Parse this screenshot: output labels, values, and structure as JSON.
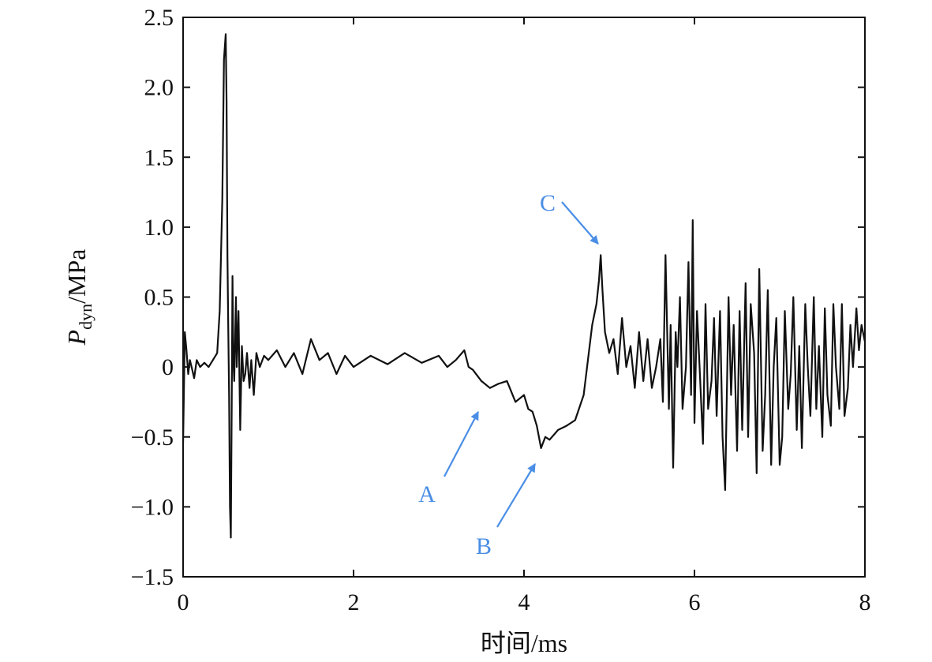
{
  "chart_data": {
    "type": "line",
    "xlabel": "时间/ms",
    "ylabel": {
      "main": "P",
      "subscript": "dyn",
      "unit": "/MPa"
    },
    "xlim": [
      0,
      8
    ],
    "ylim": [
      -1.5,
      2.5
    ],
    "xticks": [
      0,
      2,
      4,
      6,
      8
    ],
    "xtick_labels": [
      "0",
      "2",
      "4",
      "6",
      "8"
    ],
    "yticks": [
      2.5,
      2.0,
      1.5,
      1.0,
      0.5,
      0,
      -0.5,
      -1.0,
      -1.5
    ],
    "ytick_labels": [
      "2.5",
      "2.0",
      "1.5",
      "1.0",
      "0.5",
      "0",
      "−0.5",
      "−1.0",
      "−1.5"
    ],
    "grid": false,
    "legend": "none",
    "line_color": "#111111",
    "annotation_color": "#4a8ee6",
    "series": [
      {
        "x": [
          0.0,
          0.02,
          0.04,
          0.06,
          0.08,
          0.1,
          0.13,
          0.16,
          0.2,
          0.25,
          0.3,
          0.35,
          0.4,
          0.43,
          0.46,
          0.48,
          0.5,
          0.51,
          0.52,
          0.53,
          0.54,
          0.55,
          0.56,
          0.57,
          0.58,
          0.59,
          0.6,
          0.62,
          0.63,
          0.65,
          0.67,
          0.69,
          0.71,
          0.73,
          0.75,
          0.78,
          0.8,
          0.83,
          0.86,
          0.9,
          0.95,
          1.0,
          1.1,
          1.2,
          1.3,
          1.4,
          1.5,
          1.6,
          1.7,
          1.8,
          1.9,
          2.0,
          2.2,
          2.4,
          2.6,
          2.8,
          3.0,
          3.1,
          3.2,
          3.3,
          3.35,
          3.4,
          3.5,
          3.6,
          3.7,
          3.8,
          3.9,
          4.0,
          4.05,
          4.1,
          4.15,
          4.2,
          4.25,
          4.3,
          4.4,
          4.5,
          4.6,
          4.7,
          4.75,
          4.8,
          4.85,
          4.88,
          4.9,
          4.92,
          4.95,
          5.0,
          5.05,
          5.1,
          5.15,
          5.2,
          5.25,
          5.3,
          5.35,
          5.4,
          5.45,
          5.5,
          5.55,
          5.6,
          5.63,
          5.66,
          5.7,
          5.72,
          5.75,
          5.78,
          5.8,
          5.83,
          5.86,
          5.9,
          5.93,
          5.96,
          5.98,
          6.0,
          6.03,
          6.06,
          6.1,
          6.13,
          6.16,
          6.2,
          6.23,
          6.26,
          6.3,
          6.33,
          6.36,
          6.4,
          6.43,
          6.46,
          6.5,
          6.53,
          6.56,
          6.6,
          6.63,
          6.66,
          6.7,
          6.73,
          6.76,
          6.8,
          6.83,
          6.86,
          6.9,
          6.93,
          6.96,
          7.0,
          7.03,
          7.06,
          7.1,
          7.13,
          7.16,
          7.2,
          7.23,
          7.26,
          7.3,
          7.33,
          7.36,
          7.4,
          7.43,
          7.46,
          7.5,
          7.53,
          7.56,
          7.6,
          7.63,
          7.66,
          7.7,
          7.73,
          7.76,
          7.8,
          7.83,
          7.86,
          7.9,
          7.93,
          7.96,
          8.0
        ],
        "y": [
          -0.55,
          0.25,
          0.12,
          -0.05,
          0.05,
          0.0,
          -0.08,
          0.05,
          0.0,
          0.03,
          0.0,
          0.05,
          0.1,
          0.4,
          1.2,
          2.2,
          2.38,
          1.9,
          0.8,
          0.3,
          -0.2,
          -1.0,
          -1.22,
          -0.3,
          0.65,
          0.05,
          -0.1,
          0.5,
          0.0,
          0.4,
          -0.45,
          0.15,
          -0.1,
          -0.05,
          0.1,
          -0.15,
          0.05,
          -0.2,
          0.1,
          0.0,
          0.08,
          0.05,
          0.12,
          0.0,
          0.1,
          -0.05,
          0.2,
          0.05,
          0.1,
          -0.05,
          0.08,
          0.0,
          0.08,
          0.02,
          0.1,
          0.03,
          0.08,
          0.0,
          0.05,
          0.12,
          0.0,
          -0.02,
          -0.1,
          -0.15,
          -0.12,
          -0.1,
          -0.25,
          -0.2,
          -0.3,
          -0.32,
          -0.42,
          -0.58,
          -0.5,
          -0.52,
          -0.45,
          -0.42,
          -0.38,
          -0.2,
          0.05,
          0.3,
          0.45,
          0.62,
          0.8,
          0.55,
          0.25,
          0.1,
          0.2,
          -0.05,
          0.35,
          0.0,
          0.15,
          -0.15,
          0.25,
          -0.1,
          0.2,
          -0.15,
          0.0,
          0.2,
          -0.25,
          0.8,
          -0.3,
          0.3,
          -0.72,
          0.25,
          0.0,
          0.5,
          -0.3,
          0.0,
          0.75,
          -0.2,
          1.05,
          -0.4,
          0.4,
          0.0,
          -0.55,
          0.45,
          -0.3,
          -0.1,
          0.35,
          -0.35,
          0.4,
          -0.5,
          -0.88,
          0.5,
          -0.2,
          0.3,
          -0.6,
          0.4,
          -0.45,
          0.6,
          -0.5,
          0.45,
          0.1,
          -0.76,
          0.7,
          -0.6,
          -0.2,
          0.55,
          -0.7,
          0.0,
          0.35,
          -0.7,
          -0.5,
          0.4,
          -0.3,
          -0.05,
          0.5,
          -0.45,
          0.15,
          -0.58,
          0.45,
          0.0,
          -0.35,
          0.5,
          -0.3,
          0.15,
          -0.5,
          0.42,
          -0.2,
          -0.42,
          0.45,
          0.0,
          -0.3,
          0.45,
          -0.35,
          -0.15,
          0.3,
          0.0,
          0.42,
          0.12,
          0.3,
          0.18
        ]
      }
    ],
    "annotations": [
      {
        "label": "A",
        "target": [
          3.55,
          -0.18
        ]
      },
      {
        "label": "B",
        "target": [
          4.2,
          -0.58
        ]
      },
      {
        "label": "C",
        "target": [
          4.9,
          0.82
        ]
      }
    ]
  }
}
